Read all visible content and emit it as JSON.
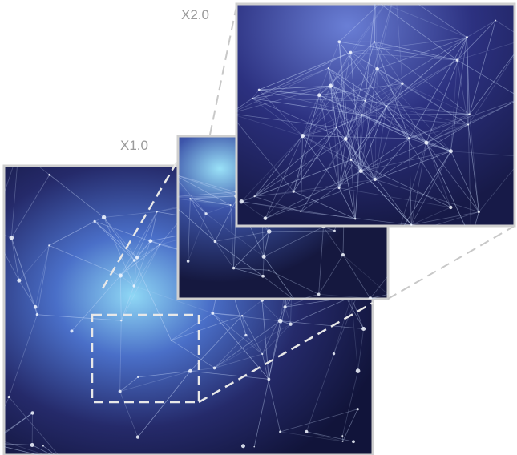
{
  "labels": [
    "X2.0",
    "X1.0"
  ]
}
